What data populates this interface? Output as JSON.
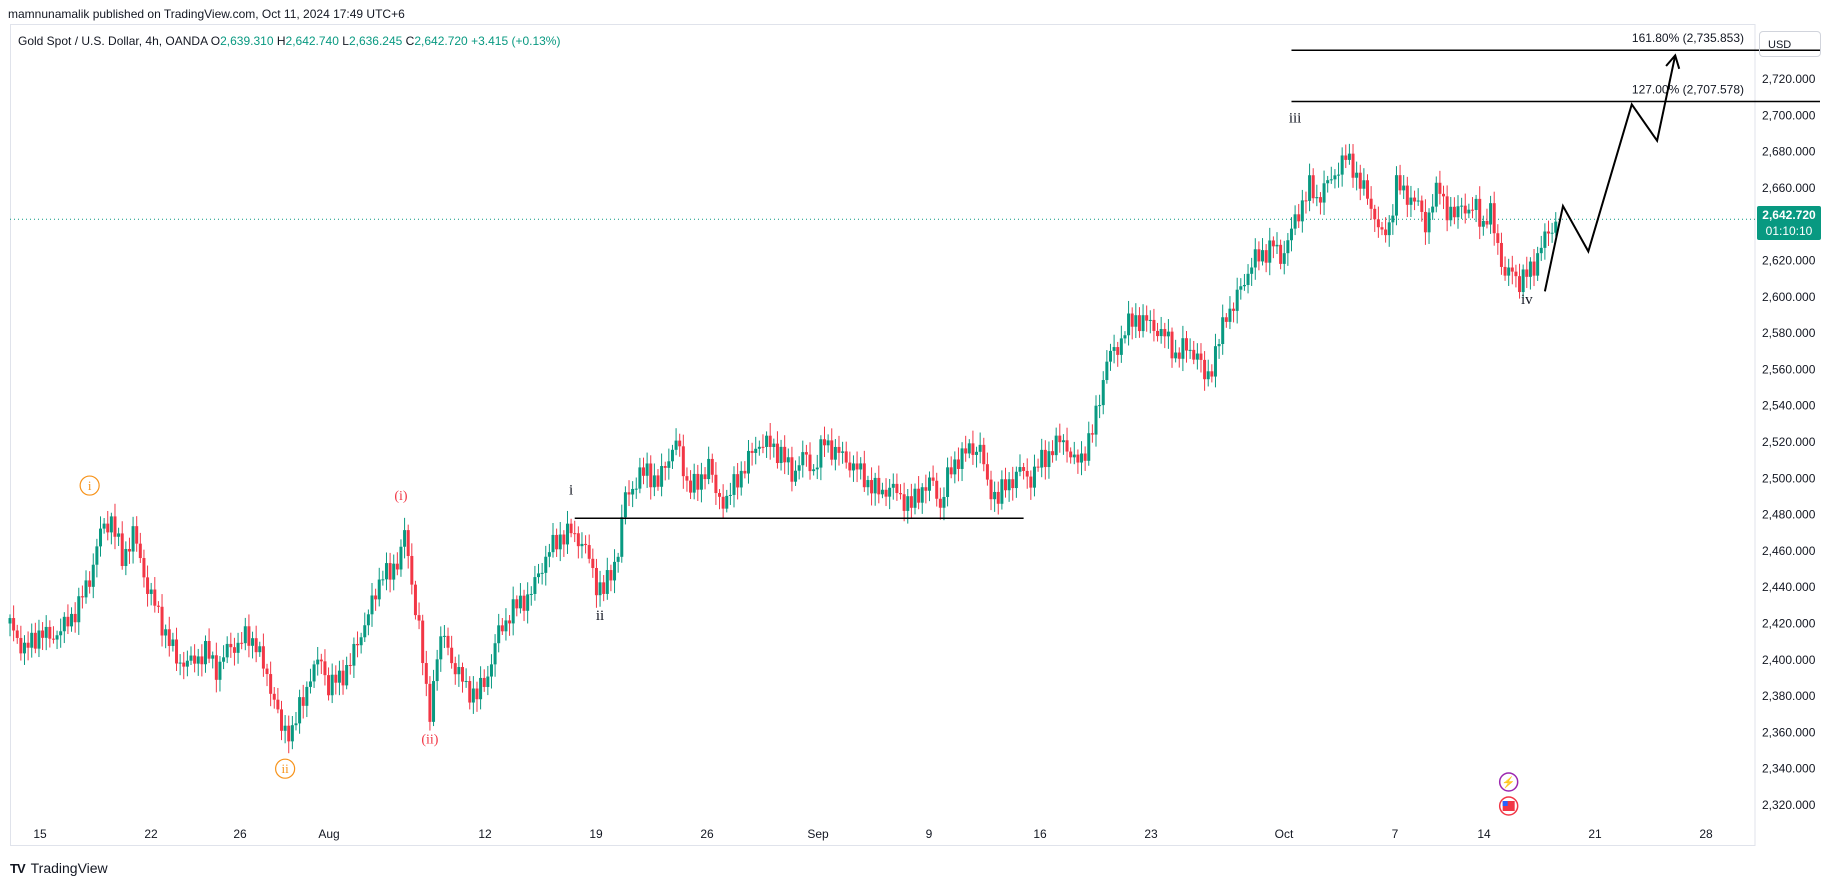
{
  "header": {
    "published": "mamnunamalik published on TradingView.com, Oct 11, 2024 17:49 UTC+6"
  },
  "legend": {
    "symbol": "Gold Spot / U.S. Dollar, 4h, OANDA",
    "o_label": "O",
    "o_value": "2,639.310",
    "h_label": "H",
    "h_value": "2,642.740",
    "l_label": "L",
    "l_value": "2,636.245",
    "c_label": "C",
    "c_value": "2,642.720",
    "change": "+3.415 (+0.13%)"
  },
  "price_axis": {
    "currency": "USD",
    "current_price": "2,642.720",
    "countdown": "01:10:10"
  },
  "brand": {
    "logo": "TV",
    "name": "TradingView"
  },
  "colors": {
    "up": "#089981",
    "down": "#f23645",
    "wave_orange": "#f7931a",
    "wave_red": "#f23645",
    "text": "#131722",
    "grid": "#f0f3fa"
  },
  "chart_data": {
    "type": "candlestick",
    "ylim": [
      2308,
      2755
    ],
    "y_ticks": [
      "2,320.000",
      "2,340.000",
      "2,360.000",
      "2,380.000",
      "2,400.000",
      "2,420.000",
      "2,440.000",
      "2,460.000",
      "2,480.000",
      "2,500.000",
      "2,520.000",
      "2,540.000",
      "2,560.000",
      "2,580.000",
      "2,600.000",
      "2,620.000",
      "2,640.000",
      "2,660.000",
      "2,680.000",
      "2,700.000",
      "2,720.000"
    ],
    "x_ticks": [
      "15",
      "22",
      "26",
      "Aug",
      "12",
      "19",
      "26",
      "Sep",
      "9",
      "16",
      "23",
      "Oct",
      "7",
      "14",
      "21",
      "28"
    ],
    "price_path": [
      [
        0,
        2420
      ],
      [
        8,
        2405
      ],
      [
        16,
        2415
      ],
      [
        22,
        2412
      ],
      [
        30,
        2418
      ],
      [
        38,
        2430
      ],
      [
        44,
        2445
      ],
      [
        50,
        2470
      ],
      [
        56,
        2478
      ],
      [
        62,
        2455
      ],
      [
        68,
        2470
      ],
      [
        76,
        2440
      ],
      [
        84,
        2420
      ],
      [
        92,
        2400
      ],
      [
        100,
        2398
      ],
      [
        108,
        2405
      ],
      [
        114,
        2395
      ],
      [
        120,
        2405
      ],
      [
        130,
        2412
      ],
      [
        136,
        2410
      ],
      [
        140,
        2395
      ],
      [
        146,
        2380
      ],
      [
        150,
        2360
      ],
      [
        156,
        2362
      ],
      [
        162,
        2378
      ],
      [
        166,
        2392
      ],
      [
        172,
        2400
      ],
      [
        176,
        2385
      ],
      [
        182,
        2390
      ],
      [
        188,
        2398
      ],
      [
        194,
        2415
      ],
      [
        200,
        2430
      ],
      [
        206,
        2450
      ],
      [
        210,
        2445
      ],
      [
        214,
        2455
      ],
      [
        218,
        2470
      ],
      [
        222,
        2440
      ],
      [
        226,
        2420
      ],
      [
        230,
        2380
      ],
      [
        232,
        2370
      ],
      [
        236,
        2405
      ],
      [
        240,
        2412
      ],
      [
        246,
        2395
      ],
      [
        252,
        2385
      ],
      [
        258,
        2380
      ],
      [
        264,
        2392
      ],
      [
        270,
        2415
      ],
      [
        276,
        2425
      ],
      [
        282,
        2432
      ],
      [
        288,
        2436
      ],
      [
        292,
        2448
      ],
      [
        298,
        2460
      ],
      [
        304,
        2468
      ],
      [
        310,
        2470
      ],
      [
        316,
        2465
      ],
      [
        320,
        2455
      ],
      [
        324,
        2442
      ],
      [
        328,
        2438
      ],
      [
        332,
        2448
      ],
      [
        336,
        2460
      ],
      [
        340,
        2490
      ],
      [
        346,
        2498
      ],
      [
        352,
        2505
      ],
      [
        358,
        2496
      ],
      [
        362,
        2508
      ],
      [
        368,
        2520
      ],
      [
        374,
        2498
      ],
      [
        380,
        2495
      ],
      [
        386,
        2510
      ],
      [
        390,
        2490
      ],
      [
        396,
        2488
      ],
      [
        402,
        2500
      ],
      [
        408,
        2510
      ],
      [
        414,
        2520
      ],
      [
        420,
        2518
      ],
      [
        426,
        2514
      ],
      [
        432,
        2502
      ],
      [
        438,
        2512
      ],
      [
        444,
        2505
      ],
      [
        450,
        2520
      ],
      [
        456,
        2515
      ],
      [
        462,
        2510
      ],
      [
        468,
        2505
      ],
      [
        474,
        2498
      ],
      [
        480,
        2492
      ],
      [
        486,
        2495
      ],
      [
        492,
        2490
      ],
      [
        498,
        2485
      ],
      [
        504,
        2495
      ],
      [
        510,
        2497
      ],
      [
        514,
        2485
      ],
      [
        518,
        2500
      ],
      [
        524,
        2512
      ],
      [
        530,
        2515
      ],
      [
        536,
        2518
      ],
      [
        540,
        2495
      ],
      [
        546,
        2490
      ],
      [
        552,
        2498
      ],
      [
        558,
        2504
      ],
      [
        564,
        2500
      ],
      [
        570,
        2510
      ],
      [
        576,
        2516
      ],
      [
        582,
        2522
      ],
      [
        588,
        2508
      ],
      [
        592,
        2512
      ],
      [
        598,
        2525
      ],
      [
        602,
        2545
      ],
      [
        606,
        2565
      ],
      [
        612,
        2572
      ],
      [
        616,
        2582
      ],
      [
        622,
        2588
      ],
      [
        628,
        2586
      ],
      [
        634,
        2582
      ],
      [
        640,
        2576
      ],
      [
        644,
        2568
      ],
      [
        650,
        2572
      ],
      [
        656,
        2568
      ],
      [
        660,
        2555
      ],
      [
        664,
        2562
      ],
      [
        668,
        2575
      ],
      [
        672,
        2592
      ],
      [
        676,
        2594
      ],
      [
        680,
        2605
      ],
      [
        686,
        2618
      ],
      [
        692,
        2624
      ],
      [
        698,
        2628
      ],
      [
        702,
        2622
      ],
      [
        706,
        2630
      ],
      [
        710,
        2642
      ],
      [
        714,
        2652
      ],
      [
        718,
        2660
      ],
      [
        722,
        2654
      ],
      [
        726,
        2660
      ],
      [
        730,
        2664
      ],
      [
        734,
        2672
      ],
      [
        738,
        2676
      ],
      [
        742,
        2672
      ],
      [
        746,
        2662
      ],
      [
        750,
        2655
      ],
      [
        754,
        2645
      ],
      [
        758,
        2632
      ],
      [
        762,
        2640
      ],
      [
        766,
        2662
      ],
      [
        770,
        2657
      ],
      [
        774,
        2655
      ],
      [
        778,
        2650
      ],
      [
        782,
        2640
      ],
      [
        786,
        2652
      ],
      [
        790,
        2660
      ],
      [
        794,
        2648
      ],
      [
        798,
        2643
      ],
      [
        802,
        2653
      ],
      [
        806,
        2645
      ],
      [
        810,
        2650
      ],
      [
        814,
        2640
      ],
      [
        818,
        2645
      ],
      [
        822,
        2630
      ],
      [
        826,
        2610
      ],
      [
        830,
        2615
      ],
      [
        834,
        2608
      ],
      [
        838,
        2612
      ],
      [
        842,
        2618
      ],
      [
        846,
        2628
      ],
      [
        850,
        2635
      ],
      [
        854,
        2642
      ]
    ],
    "horizontal_lines": [
      {
        "price": 2478,
        "from": 312,
        "to": 560
      },
      {
        "price": 2707.578,
        "from": 708,
        "to": 1000
      },
      {
        "price": 2735.853,
        "from": 708,
        "to": 1000
      }
    ],
    "fib_labels": [
      {
        "text": "127.00% (2,707.578)",
        "price": 2707.578
      },
      {
        "text": "161.80% (2,735.853)",
        "price": 2735.853
      }
    ],
    "projection": [
      [
        848,
        2603
      ],
      [
        858,
        2650
      ],
      [
        872,
        2625
      ],
      [
        896,
        2706
      ],
      [
        910,
        2686
      ],
      [
        920,
        2733
      ]
    ],
    "wave_labels": [
      {
        "text": "i",
        "style": "orange-circle",
        "t": 44,
        "price": 2496
      },
      {
        "text": "ii",
        "style": "orange-circle",
        "t": 152,
        "price": 2340
      },
      {
        "text": "(i)",
        "style": "red",
        "t": 216,
        "price": 2488
      },
      {
        "text": "(ii)",
        "style": "red",
        "t": 232,
        "price": 2354
      },
      {
        "text": "i",
        "style": "black",
        "t": 310,
        "price": 2491
      },
      {
        "text": "ii",
        "style": "black",
        "t": 326,
        "price": 2422
      },
      {
        "text": "iii",
        "style": "black",
        "t": 710,
        "price": 2696
      },
      {
        "text": "iv",
        "style": "black",
        "t": 838,
        "price": 2596
      }
    ]
  }
}
